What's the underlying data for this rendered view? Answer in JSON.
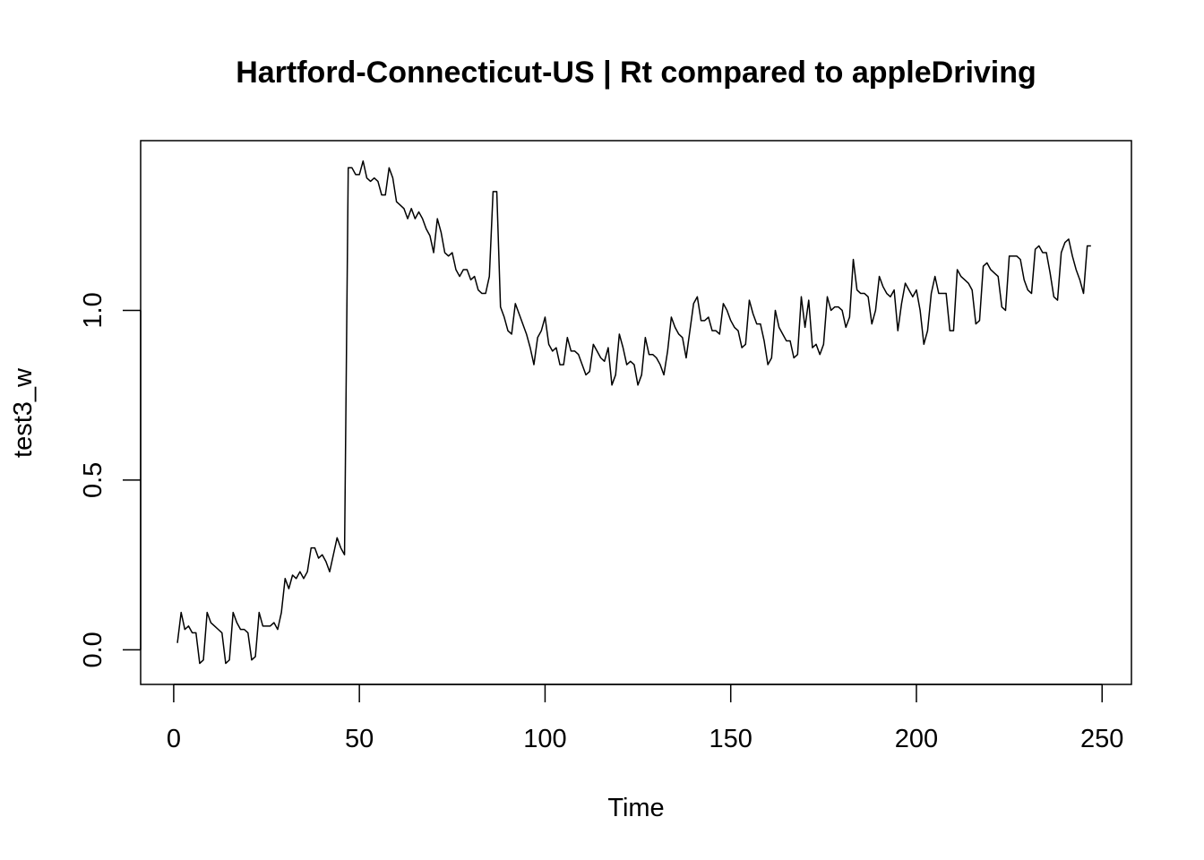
{
  "chart_data": {
    "type": "line",
    "title": "Hartford-Connecticut-US | Rt compared to appleDriving",
    "xlabel": "Time",
    "ylabel": "test3_w",
    "xlim": [
      -8.9,
      257.9
    ],
    "ylim": [
      -0.102,
      1.5
    ],
    "x_ticks": [
      0,
      50,
      100,
      150,
      200,
      250
    ],
    "y_ticks": [
      0.0,
      0.5,
      1.0
    ],
    "x_tick_labels": [
      "0",
      "50",
      "100",
      "150",
      "200",
      "250"
    ],
    "y_tick_labels": [
      "0.0",
      "0.5",
      "1.0"
    ],
    "grid": false,
    "legend": "none",
    "series": [
      {
        "color": "#000000",
        "x_start": 1,
        "x_step": 1,
        "values": [
          0.02,
          0.11,
          0.06,
          0.07,
          0.05,
          0.05,
          -0.04,
          -0.03,
          0.11,
          0.08,
          0.07,
          0.06,
          0.05,
          -0.04,
          -0.03,
          0.11,
          0.08,
          0.06,
          0.06,
          0.05,
          -0.03,
          -0.02,
          0.11,
          0.07,
          0.07,
          0.07,
          0.08,
          0.06,
          0.11,
          0.21,
          0.18,
          0.22,
          0.21,
          0.23,
          0.21,
          0.23,
          0.3,
          0.3,
          0.27,
          0.28,
          0.26,
          0.23,
          0.28,
          0.33,
          0.3,
          0.28,
          1.42,
          1.42,
          1.4,
          1.4,
          1.44,
          1.39,
          1.38,
          1.39,
          1.38,
          1.34,
          1.34,
          1.42,
          1.39,
          1.32,
          1.31,
          1.3,
          1.27,
          1.3,
          1.27,
          1.29,
          1.27,
          1.24,
          1.22,
          1.17,
          1.27,
          1.23,
          1.17,
          1.16,
          1.17,
          1.12,
          1.1,
          1.12,
          1.12,
          1.09,
          1.1,
          1.06,
          1.05,
          1.05,
          1.1,
          1.35,
          1.35,
          1.01,
          0.98,
          0.94,
          0.93,
          1.02,
          0.99,
          0.96,
          0.93,
          0.89,
          0.84,
          0.92,
          0.94,
          0.98,
          0.9,
          0.88,
          0.89,
          0.84,
          0.84,
          0.92,
          0.88,
          0.88,
          0.87,
          0.84,
          0.81,
          0.82,
          0.9,
          0.88,
          0.86,
          0.85,
          0.89,
          0.78,
          0.81,
          0.93,
          0.89,
          0.84,
          0.85,
          0.84,
          0.78,
          0.81,
          0.92,
          0.87,
          0.87,
          0.86,
          0.84,
          0.81,
          0.88,
          0.98,
          0.95,
          0.93,
          0.92,
          0.86,
          0.94,
          1.02,
          1.04,
          0.97,
          0.97,
          0.98,
          0.94,
          0.94,
          0.93,
          1.02,
          1.0,
          0.97,
          0.95,
          0.94,
          0.89,
          0.9,
          1.03,
          0.99,
          0.96,
          0.96,
          0.91,
          0.84,
          0.86,
          1.0,
          0.95,
          0.93,
          0.91,
          0.91,
          0.86,
          0.87,
          1.04,
          0.95,
          1.03,
          0.89,
          0.9,
          0.87,
          0.9,
          1.04,
          1.0,
          1.01,
          1.01,
          1.0,
          0.95,
          0.98,
          1.15,
          1.06,
          1.05,
          1.05,
          1.04,
          0.96,
          1.0,
          1.1,
          1.07,
          1.05,
          1.04,
          1.06,
          0.94,
          1.02,
          1.08,
          1.06,
          1.04,
          1.06,
          1.0,
          0.9,
          0.94,
          1.05,
          1.1,
          1.05,
          1.05,
          1.05,
          0.94,
          0.94,
          1.12,
          1.1,
          1.09,
          1.08,
          1.06,
          0.96,
          0.97,
          1.13,
          1.14,
          1.12,
          1.11,
          1.1,
          1.01,
          1.0,
          1.16,
          1.16,
          1.16,
          1.15,
          1.09,
          1.06,
          1.05,
          1.18,
          1.19,
          1.17,
          1.17,
          1.11,
          1.04,
          1.03,
          1.17,
          1.2,
          1.21,
          1.16,
          1.12,
          1.09,
          1.05,
          1.19,
          1.19
        ]
      }
    ]
  }
}
